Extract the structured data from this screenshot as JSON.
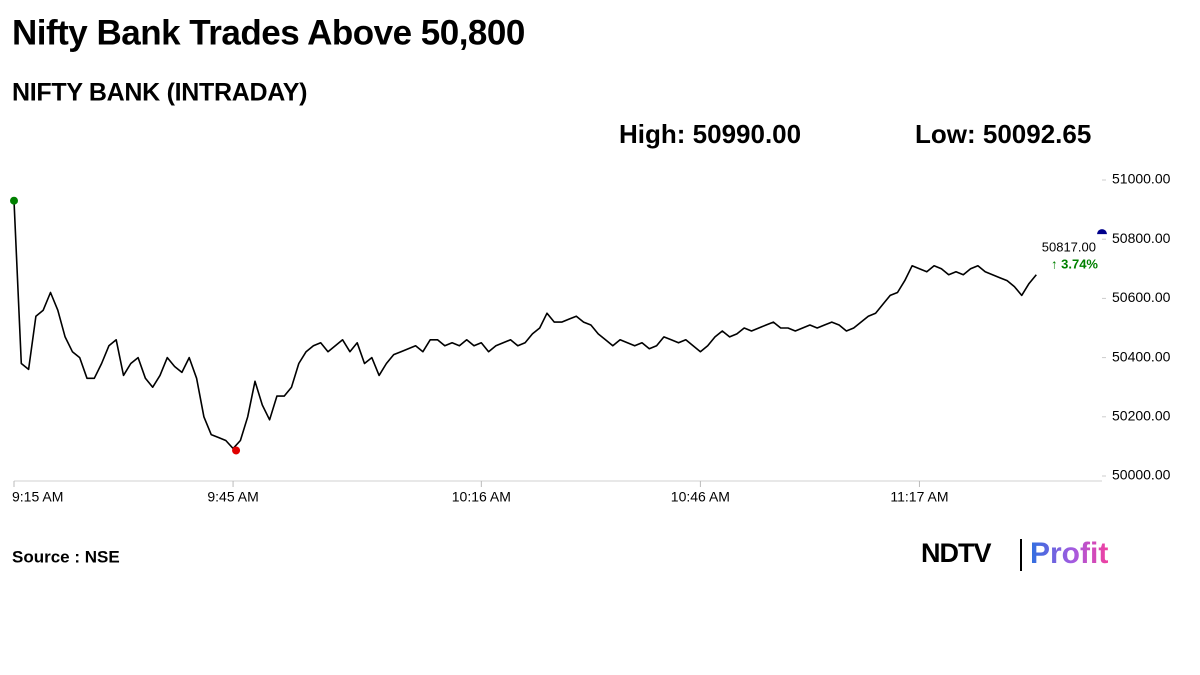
{
  "chart_data": {
    "type": "line",
    "title": "Nifty Bank Trades Above 50,800",
    "subtitle": "NIFTY BANK (INTRADAY)",
    "high_label": "High: 50990.00",
    "low_label": "Low: 50092.65",
    "source": "Source : NSE",
    "brand": [
      "NDTV",
      "Profit"
    ],
    "categories": [
      "9:15 AM",
      null,
      null,
      null,
      null,
      null,
      null,
      null,
      null,
      null,
      null,
      null,
      null,
      null,
      null,
      null,
      null,
      null,
      null,
      null,
      null,
      null,
      null,
      null,
      null,
      null,
      null,
      null,
      null,
      null,
      "9:45 AM",
      null,
      null,
      null,
      null,
      null,
      null,
      null,
      null,
      null,
      null,
      null,
      null,
      null,
      null,
      null,
      null,
      null,
      null,
      null,
      null,
      null,
      null,
      null,
      null,
      null,
      null,
      null,
      null,
      null,
      null,
      null,
      null,
      null,
      "10:16 AM",
      null,
      null,
      null,
      null,
      null,
      null,
      null,
      null,
      null,
      null,
      null,
      null,
      null,
      null,
      null,
      null,
      null,
      null,
      null,
      null,
      null,
      null,
      null,
      null,
      null,
      null,
      null,
      null,
      null,
      "10:46 AM",
      null,
      null,
      null,
      null,
      null,
      null,
      null,
      null,
      null,
      null,
      null,
      null,
      null,
      null,
      null,
      null,
      null,
      null,
      null,
      null,
      null,
      null,
      null,
      null,
      null,
      null,
      null,
      null,
      null,
      "11:17 AM",
      null,
      null,
      null,
      null,
      null,
      null,
      null,
      null,
      null,
      null,
      null,
      null,
      null,
      null,
      null,
      null,
      null,
      null,
      null,
      null,
      null,
      null,
      null,
      null,
      null
    ],
    "series": [
      {
        "name": "NIFTY BANK",
        "color": "#000000",
        "values": [
          50930,
          50380,
          50360,
          50540,
          50560,
          50620,
          50560,
          50470,
          50420,
          50400,
          50330,
          50330,
          50380,
          50440,
          50460,
          50340,
          50380,
          50400,
          50330,
          50300,
          50340,
          50400,
          50370,
          50350,
          50400,
          50330,
          50200,
          50140,
          50130,
          50120,
          50093,
          50120,
          50200,
          50320,
          50240,
          50190,
          50270,
          50270,
          50300,
          50380,
          50420,
          50440,
          50450,
          50420,
          50440,
          50460,
          50420,
          50450,
          50380,
          50400,
          50340,
          50380,
          50410,
          50420,
          50430,
          50440,
          50420,
          50460,
          50460,
          50440,
          50450,
          50440,
          50460,
          50440,
          50450,
          50420,
          50440,
          50450,
          50460,
          50440,
          50450,
          50480,
          50500,
          50550,
          50520,
          50520,
          50530,
          50540,
          50520,
          50510,
          50480,
          50460,
          50440,
          50460,
          50450,
          50440,
          50450,
          50430,
          50440,
          50470,
          50460,
          50450,
          50460,
          50440,
          50420,
          50440,
          50470,
          50490,
          50470,
          50480,
          50500,
          50490,
          50500,
          50510,
          50520,
          50500,
          50500,
          50490,
          50500,
          50510,
          50500,
          50510,
          50520,
          50510,
          50490,
          50500,
          50520,
          50540,
          50550,
          50580,
          50610,
          50620,
          50660,
          50710,
          50700,
          50690,
          50710,
          50700,
          50680,
          50690,
          50680,
          50700,
          50710,
          50690,
          50680,
          50670,
          50660,
          50640,
          50610,
          50650,
          50680,
          null,
          null,
          null,
          null,
          null,
          null,
          null,
          null,
          null
        ]
      }
    ],
    "high_color": "#008000",
    "low_color": "#e00000",
    "last": {
      "value": 50817,
      "label": "50817.00",
      "change": "↑ 3.74%",
      "color": "#00008b",
      "change_color": "#008000"
    },
    "ylim": [
      50000,
      51000
    ],
    "yticks": [
      {
        "value": 50000,
        "label": "50000.00"
      },
      {
        "value": 50200,
        "label": "50200.00"
      },
      {
        "value": 50400,
        "label": "50400.00"
      },
      {
        "value": 50600,
        "label": "50600.00"
      },
      {
        "value": 50800,
        "label": "50800.00"
      },
      {
        "value": 51000,
        "label": "51000.00"
      }
    ],
    "grid": false
  }
}
